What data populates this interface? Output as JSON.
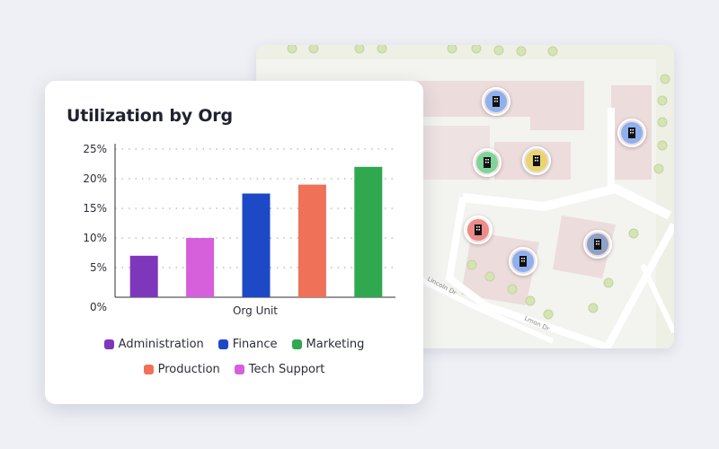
{
  "chart_data": {
    "type": "bar",
    "title": "Utilization by Org",
    "xlabel": "Org Unit",
    "ylabel": "",
    "categories": [
      "Administration",
      "Tech Support",
      "Finance",
      "Production",
      "Marketing"
    ],
    "values": [
      7,
      10,
      17.5,
      19,
      22
    ],
    "colors": [
      "#7e36ba",
      "#d65fdb",
      "#1d49c7",
      "#ef7157",
      "#30a84f"
    ],
    "yticks": [
      "0%",
      "5%",
      "10%",
      "15%",
      "20%",
      "25%"
    ],
    "ylim": [
      0,
      25
    ],
    "grid": "dotted horizontal",
    "legend_position": "bottom"
  },
  "legend": {
    "row1": [
      {
        "label": "Administration",
        "color": "#7e36ba"
      },
      {
        "label": "Finance",
        "color": "#1d49c7"
      },
      {
        "label": "Marketing",
        "color": "#30a84f"
      }
    ],
    "row2": [
      {
        "label": "Production",
        "color": "#ef7157"
      },
      {
        "label": "Tech Support",
        "color": "#d65fdb"
      }
    ]
  },
  "map": {
    "street_labels": [
      "Lincoln Dr",
      "Lmon Dr"
    ],
    "pins": [
      {
        "icon": "building-icon",
        "color": "#8fb0ee"
      },
      {
        "icon": "building-icon",
        "color": "#8fb0ee"
      },
      {
        "icon": "building-icon",
        "color": "#7fd49a"
      },
      {
        "icon": "building-icon",
        "color": "#e7d56f"
      },
      {
        "icon": "building-icon",
        "color": "#ef8a8a"
      },
      {
        "icon": "building-icon",
        "color": "#8fa2c8"
      },
      {
        "icon": "building-icon",
        "color": "#8fb0ee"
      }
    ]
  }
}
